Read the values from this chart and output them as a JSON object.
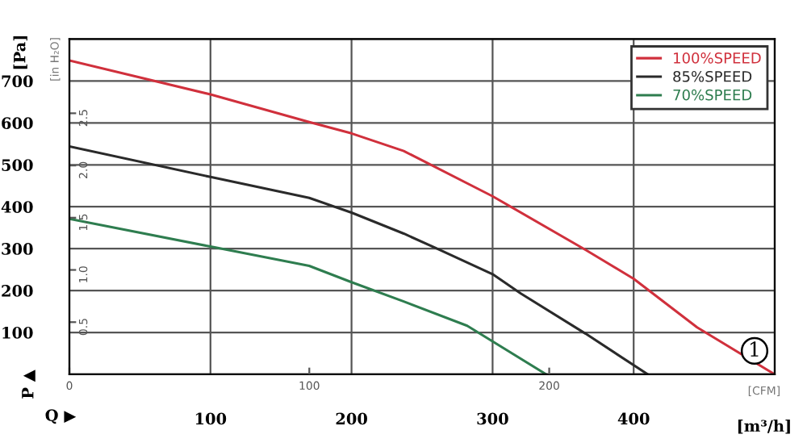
{
  "chart_data": {
    "type": "line",
    "xlabel": "[m³/h]",
    "ylabel": "[Pa]",
    "y2label": "[in H₂O]",
    "x2label": "[CFM]",
    "xlim": [
      0,
      500
    ],
    "xticks": [
      100,
      200,
      300,
      400
    ],
    "ylim": [
      0,
      800
    ],
    "yticks": [
      100,
      200,
      300,
      400,
      500,
      600,
      700
    ],
    "y2lim": [
      0,
      3.21
    ],
    "y2ticks": [
      0.5,
      {
        "value": 1,
        "label": "1.0"
      },
      1.5,
      {
        "value": 2,
        "label": "2.0"
      },
      2.5
    ],
    "x2lim": [
      0,
      294
    ],
    "x2ticks": [
      0,
      100,
      200
    ],
    "grid": true,
    "legend": "top right",
    "marker": "none",
    "line_style": "solid",
    "annotations": [
      "P ▲",
      "Q ▶",
      "1"
    ],
    "series": [
      {
        "name": "100%SPEED",
        "color": "#d0303c",
        "x": [
          0,
          100,
          170,
          200,
          237,
          300,
          366,
          400,
          445,
          500
        ],
        "values": [
          749,
          668,
          602,
          575,
          533,
          425,
          297,
          228,
          112,
          0
        ]
      },
      {
        "name": "85%SPEED",
        "color": "#2a2a2a",
        "x": [
          0,
          100,
          170,
          200,
          237,
          260,
          300,
          320,
          366,
          410
        ],
        "values": [
          544,
          471,
          421,
          386,
          336,
          301,
          239,
          193,
          97,
          0
        ]
      },
      {
        "name": "70%SPEED",
        "color": "#2e7d4f",
        "x": [
          0,
          100,
          170,
          200,
          237,
          282,
          338
        ],
        "values": [
          371,
          305,
          259,
          220,
          174,
          116,
          0
        ]
      }
    ]
  }
}
